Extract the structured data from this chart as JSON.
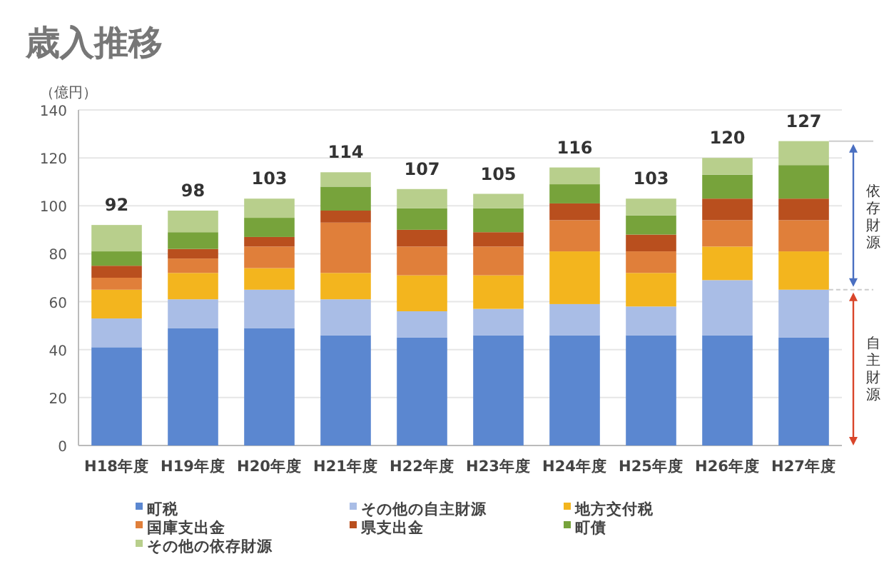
{
  "chart_data": {
    "type": "bar",
    "title": "歳入推移",
    "ylabel": "（億円）",
    "stacked": true,
    "categories": [
      "H18年度",
      "H19年度",
      "H20年度",
      "H21年度",
      "H22年度",
      "H23年度",
      "H24年度",
      "H25年度",
      "H26年度",
      "H27年度"
    ],
    "series": [
      {
        "name": "町税",
        "color": "#5b87d0",
        "values": [
          41,
          49,
          49,
          46,
          45,
          46,
          46,
          46,
          46,
          45
        ]
      },
      {
        "name": "その他の自主財源",
        "color": "#a9bde6",
        "values": [
          12,
          12,
          16,
          15,
          11,
          11,
          13,
          12,
          23,
          20
        ]
      },
      {
        "name": "地方交付税",
        "color": "#f3b51e",
        "values": [
          12,
          11,
          9,
          11,
          15,
          14,
          22,
          14,
          14,
          16
        ]
      },
      {
        "name": "国庫支出金",
        "color": "#e07f3a",
        "values": [
          5,
          6,
          9,
          21,
          12,
          12,
          13,
          9,
          11,
          13
        ]
      },
      {
        "name": "県支出金",
        "color": "#b94f1e",
        "values": [
          5,
          4,
          4,
          5,
          7,
          6,
          7,
          7,
          9,
          9
        ]
      },
      {
        "name": "町債",
        "color": "#77a33b",
        "values": [
          6,
          7,
          8,
          10,
          9,
          10,
          8,
          8,
          10,
          14
        ]
      },
      {
        "name": "その他の依存財源",
        "color": "#b8cf8c",
        "values": [
          11,
          9,
          8,
          6,
          8,
          6,
          7,
          7,
          7,
          10
        ]
      }
    ],
    "totals": [
      "92",
      "98",
      "103",
      "114",
      "107",
      "105",
      "116",
      "103",
      "120",
      "127"
    ],
    "ylim": [
      0,
      140
    ],
    "yticks": [
      0,
      20,
      40,
      60,
      80,
      100,
      120,
      140
    ],
    "grid": "y",
    "legend": "bottom",
    "annotations": [
      "依存財源",
      "自主財源"
    ]
  }
}
